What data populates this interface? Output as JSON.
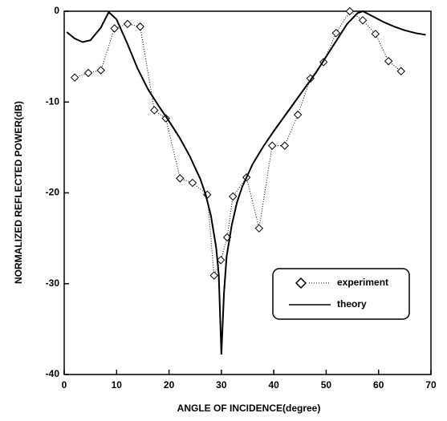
{
  "chart_data": {
    "type": "line",
    "xlabel": "ANGLE  OF  INCIDENCE(degree)",
    "ylabel": "NORMALIZED  REFLECTED  POWER(dB)",
    "xlim": [
      0,
      70
    ],
    "xticks": [
      0,
      10,
      20,
      30,
      40,
      50,
      60,
      70
    ],
    "ylim": [
      -40,
      0
    ],
    "yticks": [
      -40,
      -30,
      -20,
      -10,
      0
    ],
    "legend": "lower right",
    "series": [
      {
        "name": "experiment",
        "color": "#000000",
        "style": "dotted-markers",
        "x": [
          2.0,
          4.6,
          7.0,
          9.6,
          12.1,
          14.5,
          17.2,
          19.4,
          22.1,
          24.5,
          27.3,
          28.6,
          29.9,
          31.1,
          32.2,
          34.8,
          37.2,
          39.7,
          42.1,
          44.6,
          47.0,
          49.5,
          51.9,
          54.5,
          57.0,
          59.4,
          61.9,
          64.3
        ],
        "values": [
          -7.3,
          -6.8,
          -6.5,
          -1.9,
          -1.4,
          -1.7,
          -10.9,
          -11.8,
          -18.4,
          -18.9,
          -20.2,
          -29.1,
          -27.4,
          -24.9,
          -20.4,
          -18.3,
          -23.9,
          -14.8,
          -14.8,
          -11.4,
          -7.4,
          -5.6,
          -2.4,
          0,
          -1.0,
          -2.5,
          -5.5,
          -6.6
        ]
      },
      {
        "name": "theory",
        "color": "#000000",
        "style": "solid",
        "x": [
          0.5,
          2,
          3.5,
          5,
          7,
          8.5,
          10,
          12,
          14,
          16,
          18,
          20,
          22,
          24,
          26,
          27,
          28,
          29,
          29.5,
          30,
          30.5,
          31,
          32,
          33,
          34,
          36,
          38,
          40,
          42,
          44,
          46,
          48,
          50,
          52,
          54,
          56,
          57,
          59,
          61,
          63,
          65,
          67,
          69
        ],
        "values": [
          -2.3,
          -3.0,
          -3.4,
          -3.2,
          -1.8,
          -0.1,
          -0.9,
          -3.5,
          -6.3,
          -8.6,
          -10.4,
          -12.1,
          -13.9,
          -16.0,
          -18.5,
          -20.2,
          -22.5,
          -26.0,
          -29.0,
          -37.8,
          -31.0,
          -27.0,
          -23.5,
          -21.0,
          -19.3,
          -16.8,
          -14.9,
          -13.2,
          -11.6,
          -10.0,
          -8.4,
          -6.8,
          -5.0,
          -3.2,
          -1.4,
          -0.2,
          0,
          -0.6,
          -1.2,
          -1.7,
          -2.1,
          -2.4,
          -2.6
        ]
      }
    ]
  }
}
